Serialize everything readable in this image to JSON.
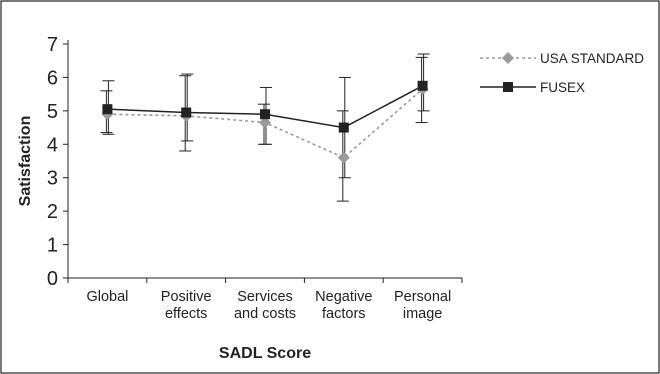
{
  "chart_data": {
    "type": "line",
    "title": "",
    "xlabel": "SADL Score",
    "ylabel": "Satisfaction",
    "categories": [
      [
        "Global"
      ],
      [
        "Positive",
        "effects"
      ],
      [
        "Services",
        "and costs"
      ],
      [
        "Negative",
        "factors"
      ],
      [
        "Personal",
        "image"
      ]
    ],
    "ylim": [
      0,
      7
    ],
    "yticks": [
      "0",
      "1",
      "2",
      "3",
      "4",
      "5",
      "6",
      "7"
    ],
    "grid": false,
    "legend_position": "top-right",
    "series": [
      {
        "name": "USA STANDARD",
        "color": "#9a9a9a",
        "marker": "diamond",
        "line_style": "dotted",
        "values": [
          4.9,
          4.85,
          4.65,
          3.6,
          5.65
        ],
        "error_low": [
          4.35,
          3.8,
          4.0,
          2.3,
          4.65
        ],
        "error_high": [
          5.6,
          6.05,
          5.2,
          5.0,
          6.6
        ]
      },
      {
        "name": "FUSEX",
        "color": "#222222",
        "marker": "square",
        "line_style": "solid",
        "values": [
          5.05,
          4.95,
          4.9,
          4.5,
          5.75
        ],
        "error_low": [
          4.3,
          4.1,
          4.0,
          3.0,
          5.0
        ],
        "error_high": [
          5.9,
          6.1,
          5.7,
          6.0,
          6.7
        ]
      }
    ]
  }
}
